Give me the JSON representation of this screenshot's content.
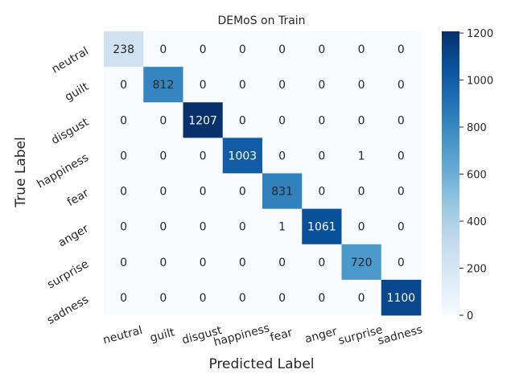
{
  "chart_data": {
    "type": "heatmap",
    "title": "DEMoS on Train",
    "xlabel": "Predicted Label",
    "ylabel": "True Label",
    "x_categories": [
      "neutral",
      "guilt",
      "disgust",
      "happiness",
      "fear",
      "anger",
      "surprise",
      "sadness"
    ],
    "y_categories": [
      "neutral",
      "guilt",
      "disgust",
      "happiness",
      "fear",
      "anger",
      "surprise",
      "sadness"
    ],
    "matrix": [
      [
        238,
        0,
        0,
        0,
        0,
        0,
        0,
        0
      ],
      [
        0,
        812,
        0,
        0,
        0,
        0,
        0,
        0
      ],
      [
        0,
        0,
        1207,
        0,
        0,
        0,
        0,
        0
      ],
      [
        0,
        0,
        0,
        1003,
        0,
        0,
        1,
        0
      ],
      [
        0,
        0,
        0,
        0,
        831,
        0,
        0,
        0
      ],
      [
        0,
        0,
        0,
        0,
        1,
        1061,
        0,
        0
      ],
      [
        0,
        0,
        0,
        0,
        0,
        0,
        720,
        0
      ],
      [
        0,
        0,
        0,
        0,
        0,
        0,
        0,
        1100
      ]
    ],
    "vmin": 0,
    "vmax": 1207,
    "colormap": "Blues",
    "colorbar_ticks": [
      0,
      200,
      400,
      600,
      800,
      1000,
      1200
    ]
  }
}
